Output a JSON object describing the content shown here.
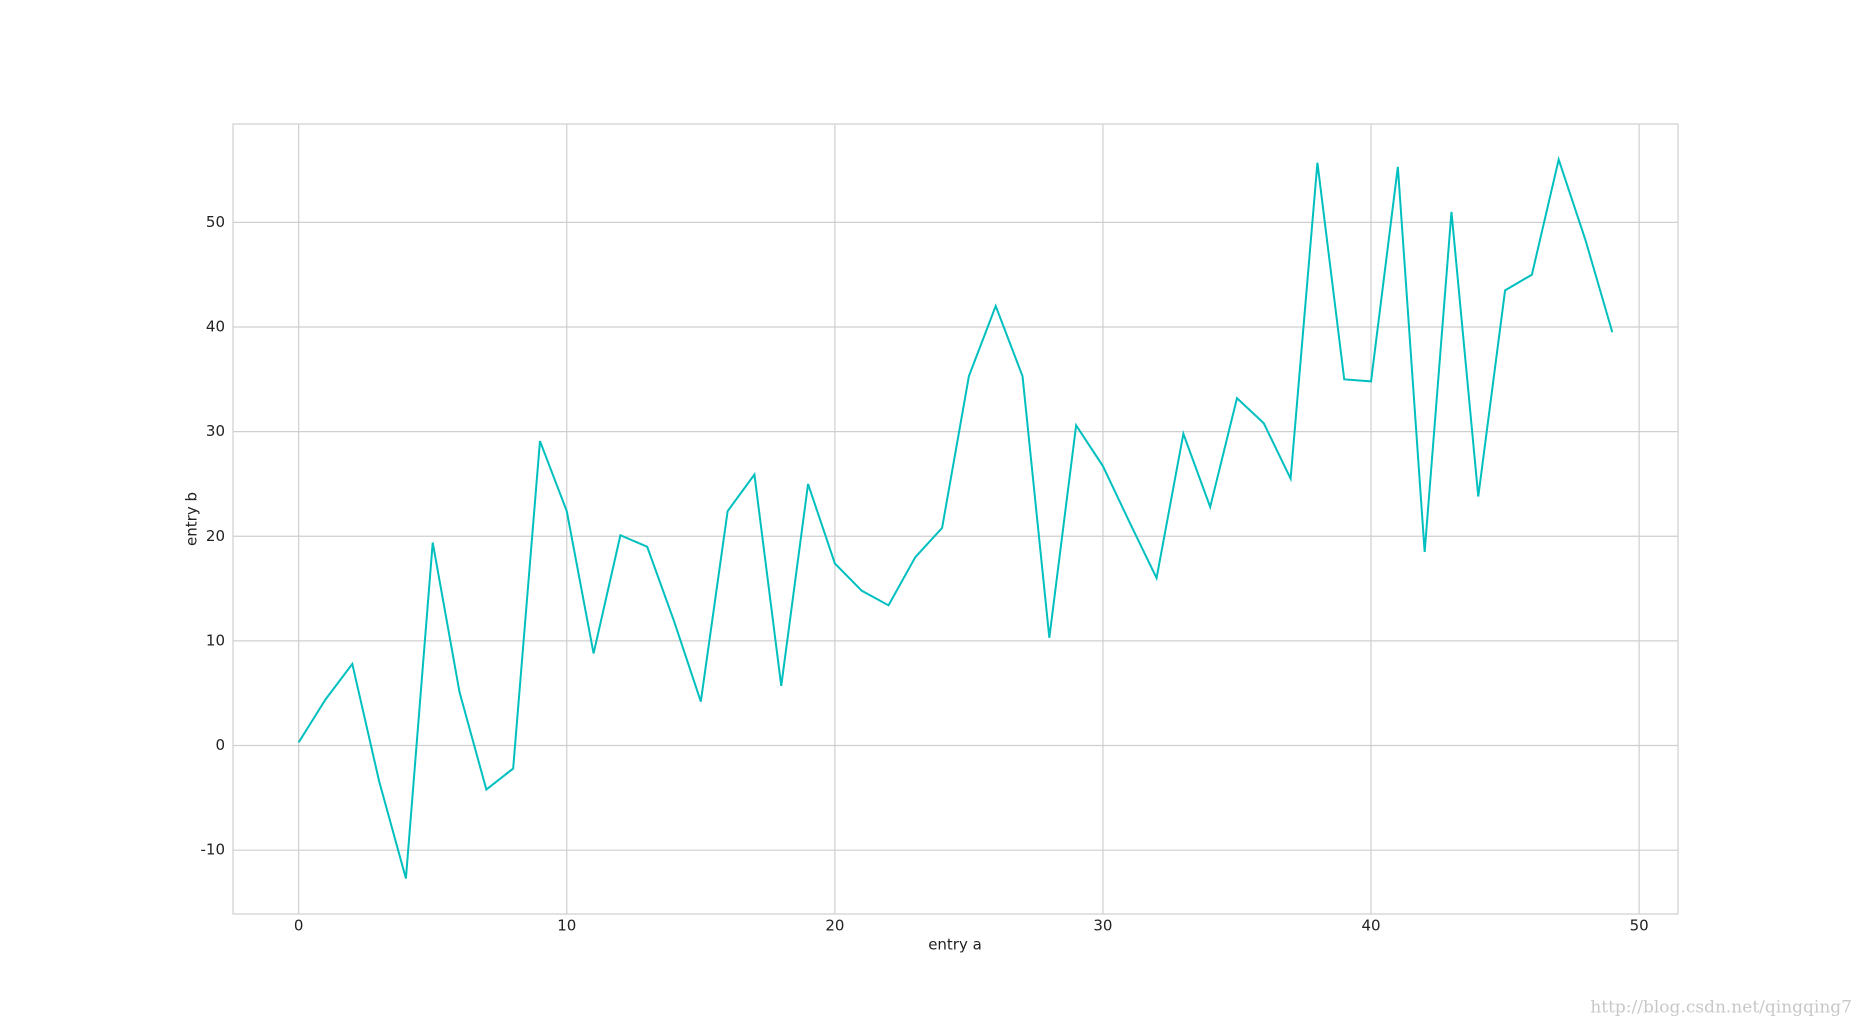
{
  "chart_data": {
    "type": "line",
    "xlabel": "entry a",
    "ylabel": "entry b",
    "x": [
      0,
      1,
      2,
      3,
      4,
      5,
      6,
      7,
      8,
      9,
      10,
      11,
      12,
      13,
      14,
      15,
      16,
      17,
      18,
      19,
      20,
      21,
      22,
      23,
      24,
      25,
      26,
      27,
      28,
      29,
      30,
      31,
      32,
      33,
      34,
      35,
      36,
      37,
      38,
      39,
      40,
      41,
      42,
      43,
      44,
      45,
      46,
      47,
      48,
      49
    ],
    "series": [
      {
        "color": "#00bfbf",
        "values": [
          0.3,
          4.4,
          7.8,
          -3.4,
          -12.7,
          19.4,
          5.1,
          -4.2,
          -2.2,
          29.1,
          22.4,
          8.8,
          20.1,
          19.0,
          11.9,
          4.2,
          22.4,
          25.9,
          5.7,
          25.0,
          17.4,
          14.8,
          13.4,
          18.0,
          20.8,
          35.3,
          42.0,
          35.3,
          10.3,
          30.6,
          26.7,
          21.3,
          16.0,
          29.8,
          22.8,
          33.2,
          30.8,
          25.5,
          55.7,
          35.0,
          34.8,
          55.3,
          18.5,
          51.0,
          23.8,
          43.5,
          45.0,
          56.0,
          48.3,
          39.5
        ]
      }
    ],
    "xlim": [
      -2.45,
      51.45
    ],
    "ylim": [
      -16.1,
      59.4
    ],
    "xticks": [
      0,
      10,
      20,
      30,
      40,
      50
    ],
    "yticks": [
      -10,
      0,
      10,
      20,
      30,
      40,
      50
    ],
    "grid": true,
    "watermark": "http://blog.csdn.net/qingqing7"
  }
}
